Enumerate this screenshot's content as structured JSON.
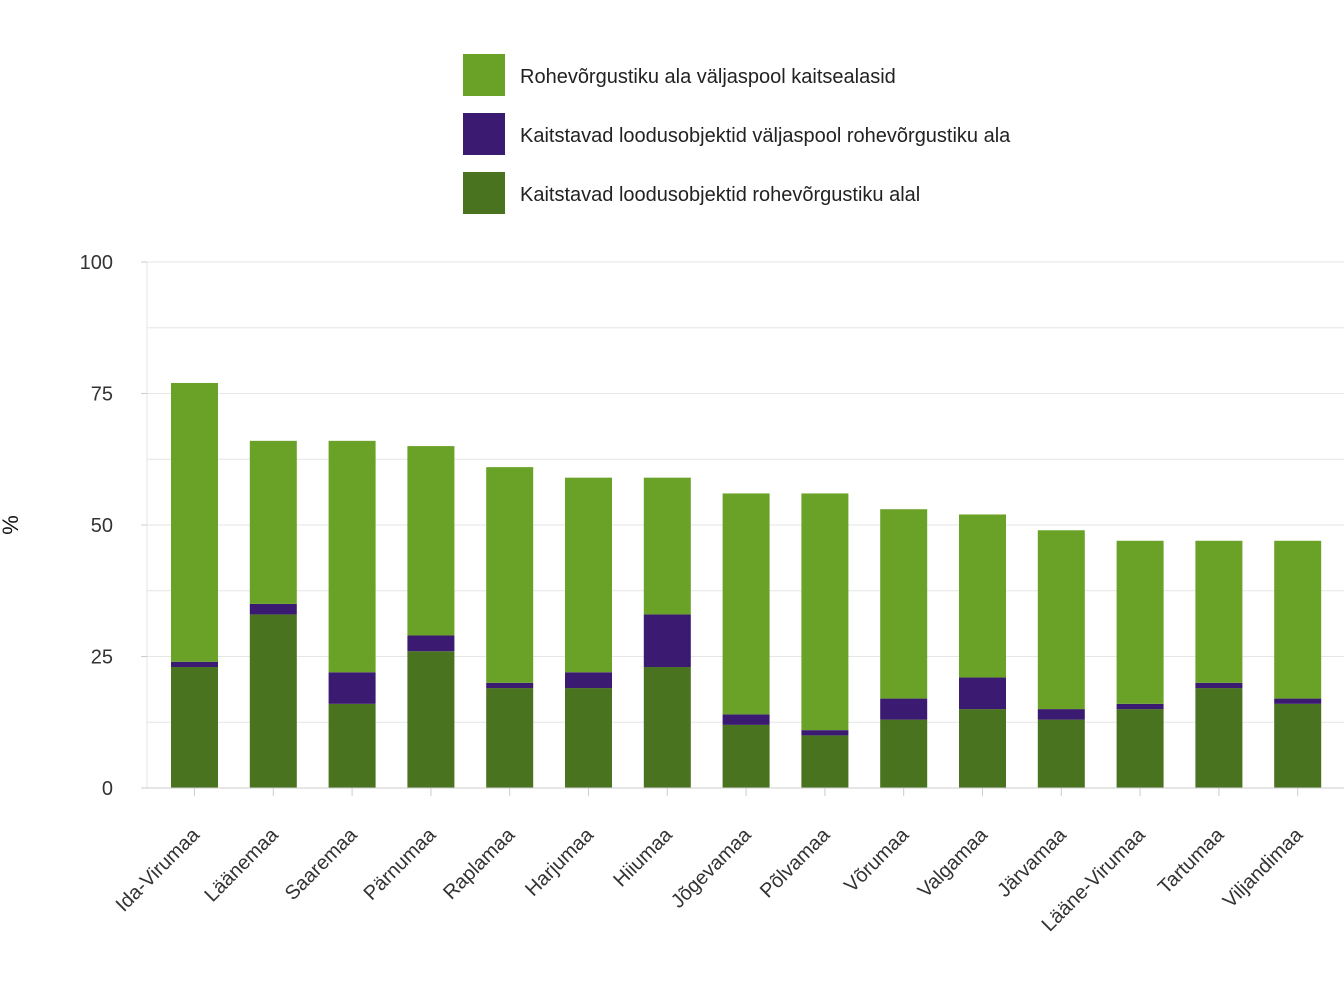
{
  "chart_data": {
    "type": "bar",
    "stacked": true,
    "ylabel": "%",
    "xlabel": "",
    "ylim": [
      0,
      100
    ],
    "yticks": [
      0,
      25,
      50,
      75,
      100
    ],
    "grid": true,
    "legend_position": "top-center",
    "categories": [
      "Ida-Virumaa",
      "Läänemaa",
      "Saaremaa",
      "Pärnumaa",
      "Raplamaa",
      "Harjumaa",
      "Hiiumaa",
      "Jõgevamaa",
      "Põlvamaa",
      "Võrumaa",
      "Valgamaa",
      "Järvamaa",
      "Lääne-Virumaa",
      "Tartumaa",
      "Viljandimaa"
    ],
    "series": [
      {
        "name": "Kaitstavad loodusobjektid rohevõrgustiku alal",
        "color": "#4a7320",
        "values": [
          23,
          33,
          16,
          26,
          19,
          19,
          23,
          12,
          10,
          13,
          15,
          13,
          15,
          19,
          16
        ]
      },
      {
        "name": "Kaitstavad loodusobjektid väljaspool rohevõrgustiku ala",
        "color": "#3b1a72",
        "values": [
          1,
          2,
          6,
          3,
          1,
          3,
          10,
          2,
          1,
          4,
          6,
          2,
          1,
          1,
          1
        ]
      },
      {
        "name": "Rohevõrgustiku ala väljaspool kaitsealasid",
        "color": "#6aa227",
        "values": [
          53,
          31,
          44,
          36,
          41,
          37,
          26,
          42,
          45,
          36,
          31,
          34,
          31,
          27,
          30
        ]
      }
    ],
    "legend_order": [
      2,
      1,
      0
    ]
  }
}
